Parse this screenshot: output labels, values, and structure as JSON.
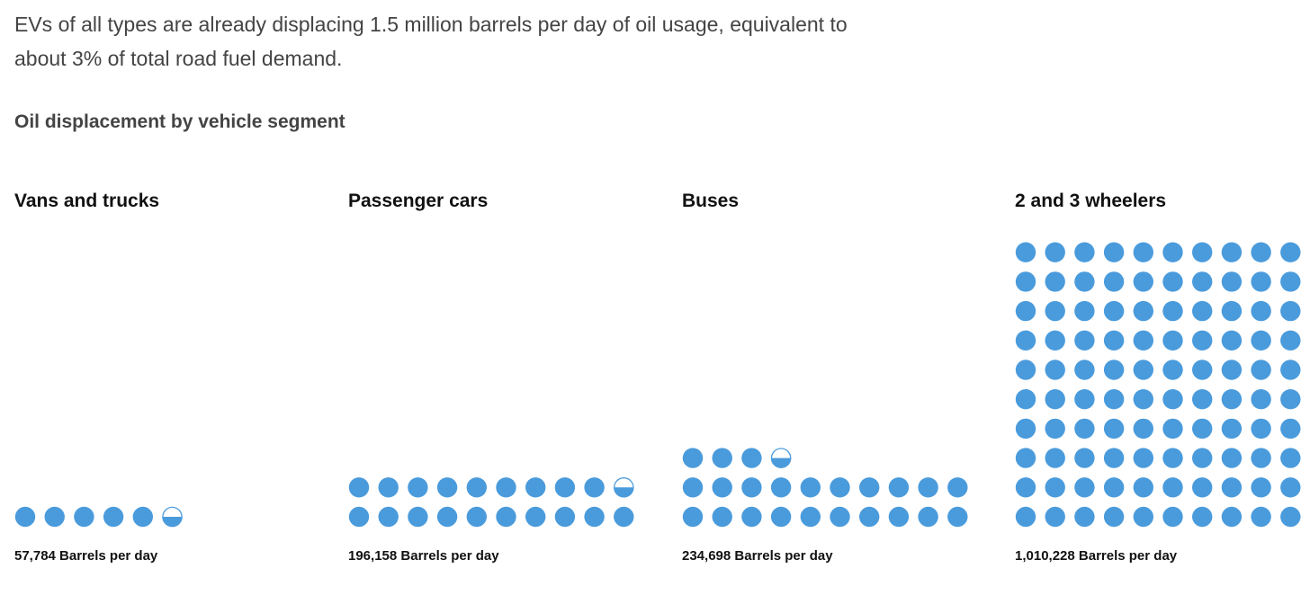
{
  "intro_text": "EVs of all types are already displacing 1.5 million barrels per day of oil usage, equivalent to about 3% of total road fuel demand.",
  "subtitle": "Oil displacement by vehicle segment",
  "colors": {
    "dot": "#4a9bdc",
    "text": "#111111",
    "muted_text": "#444444"
  },
  "chart_data": {
    "type": "waffle",
    "title": "Oil displacement by vehicle segment",
    "unit": "Barrels per day",
    "series": [
      {
        "name": "Vans and trucks",
        "value": 57784,
        "label": "57,784 Barrels per day",
        "dots": 5.5
      },
      {
        "name": "Passenger cars",
        "value": 196158,
        "label": "196,158 Barrels per day",
        "dots": 19.5
      },
      {
        "name": "Buses",
        "value": 234698,
        "label": "234,698 Barrels per day",
        "dots": 23.5
      },
      {
        "name": "2 and 3 wheelers",
        "value": 1010228,
        "label": "1,010,228 Barrels per day",
        "dots": 100
      }
    ]
  }
}
